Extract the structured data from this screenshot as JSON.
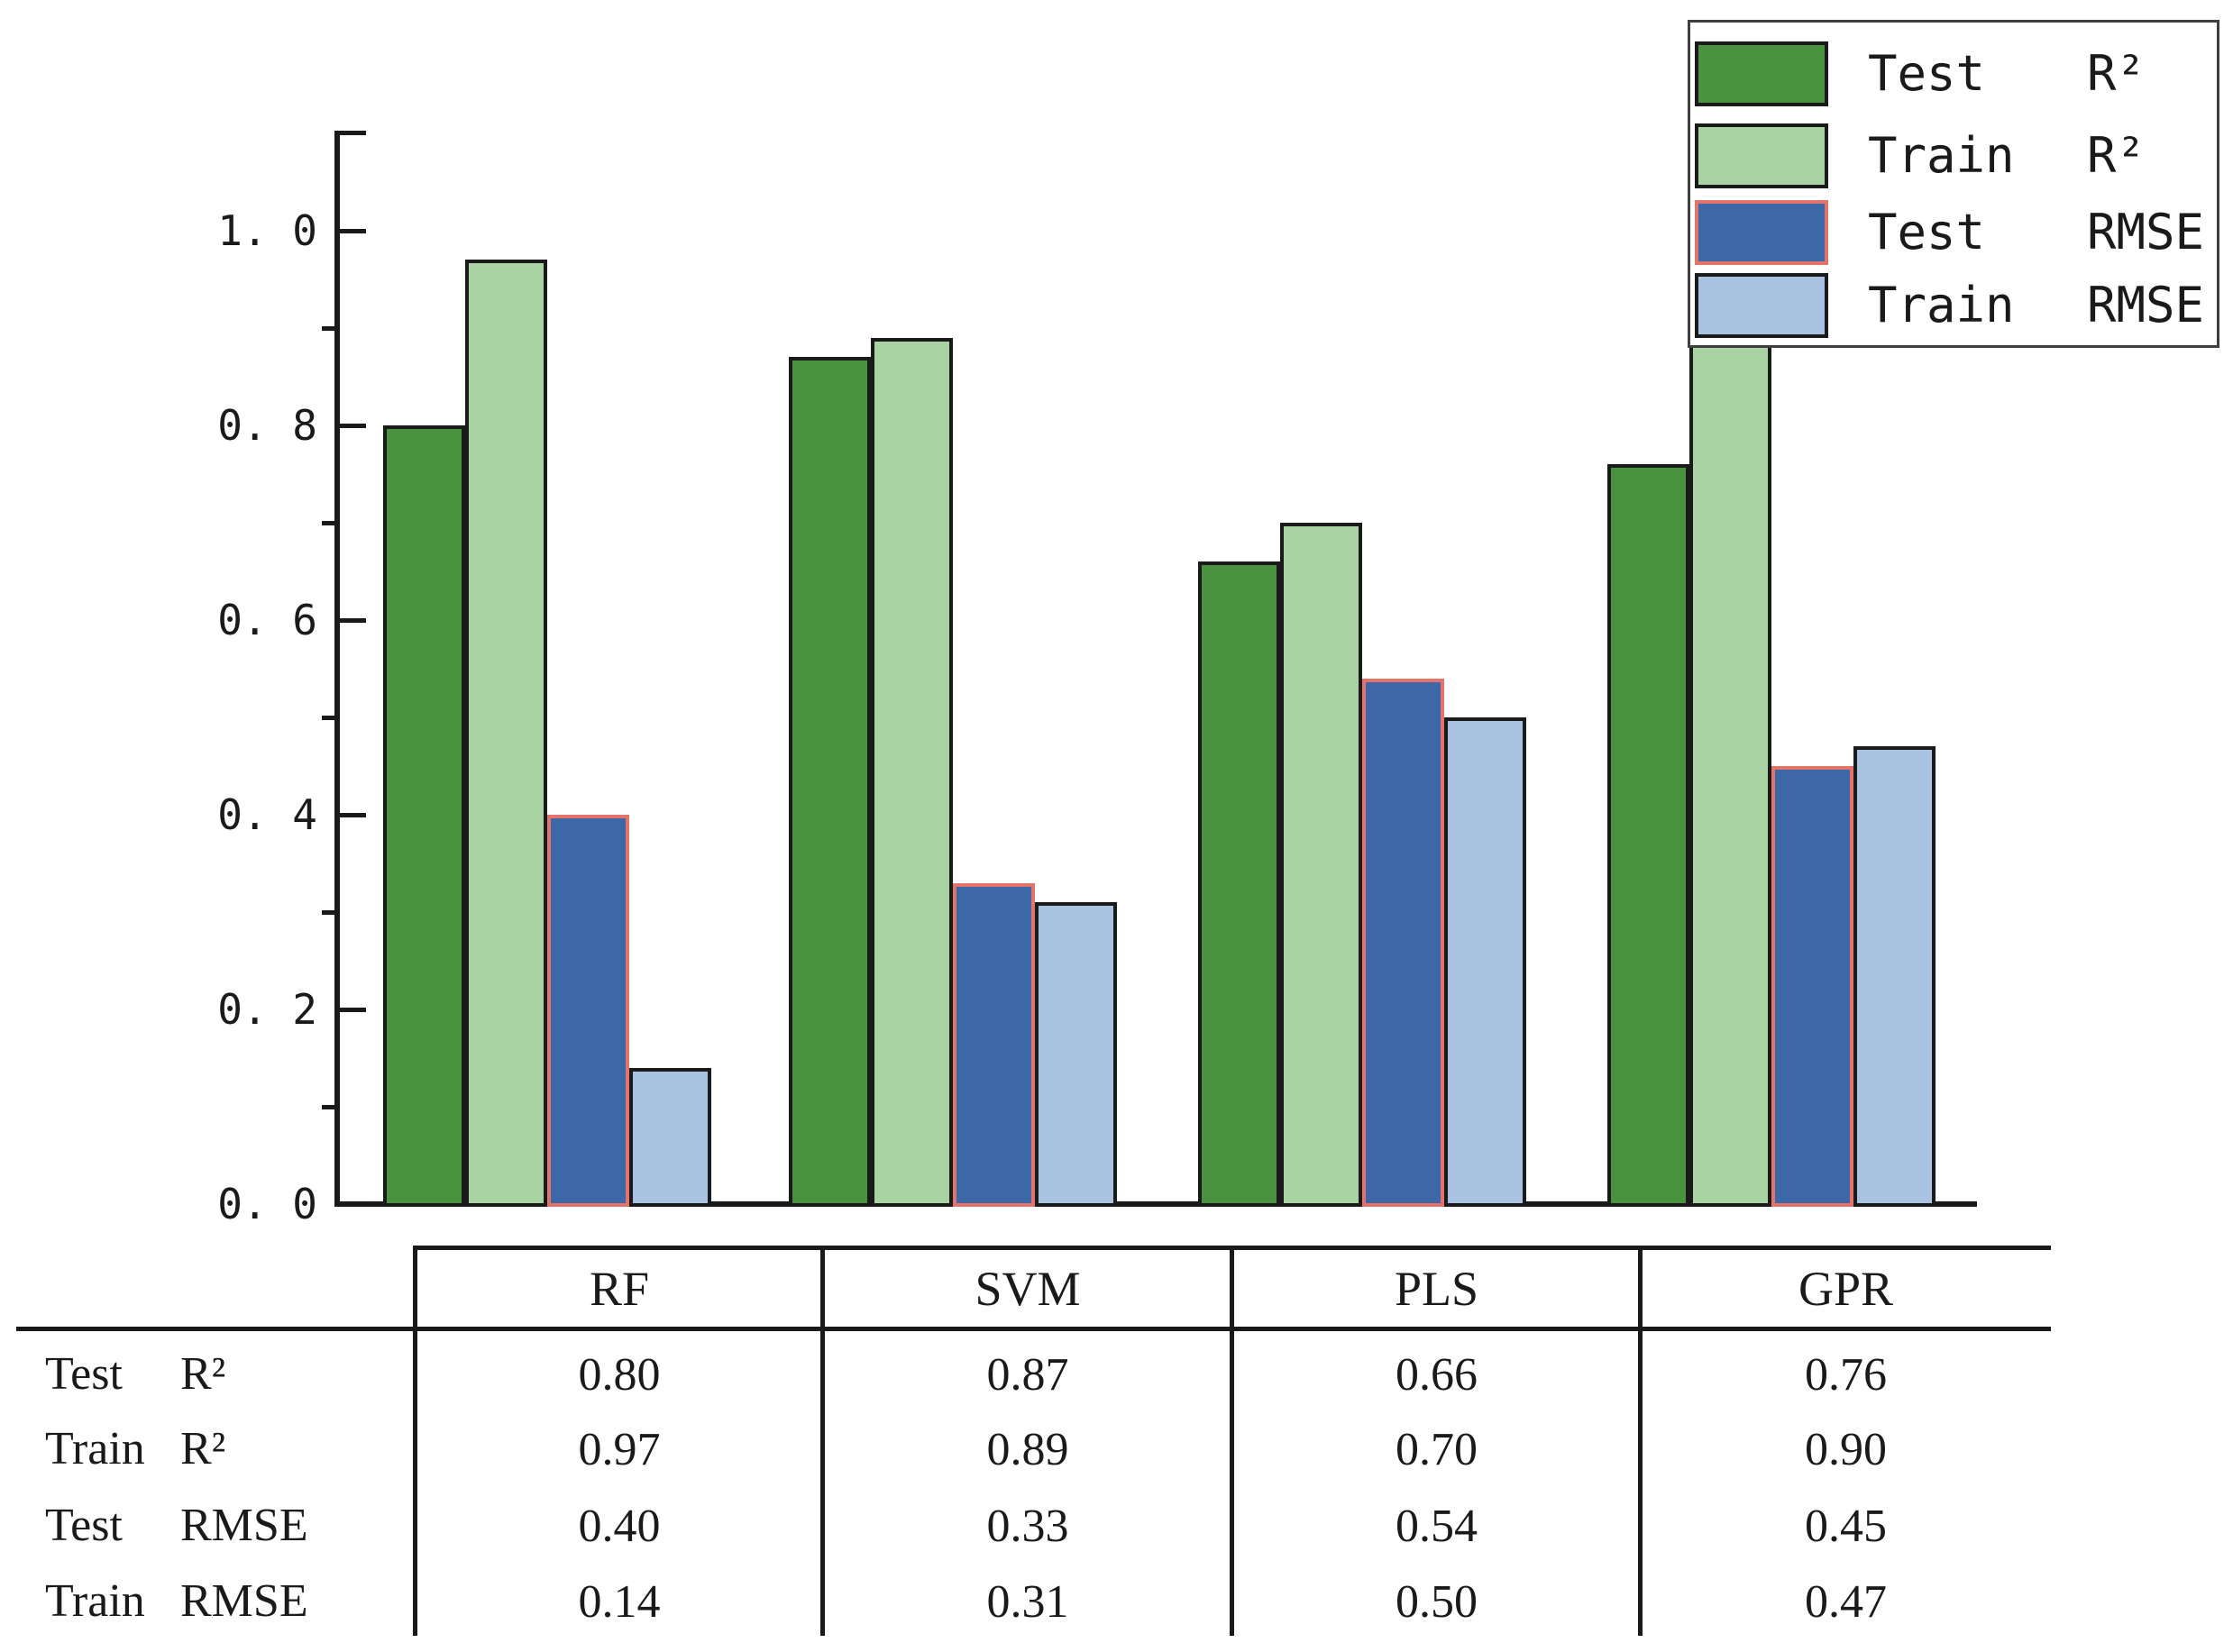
{
  "chart_data": {
    "type": "bar",
    "categories": [
      "RF",
      "SVM",
      "PLS",
      "GPR"
    ],
    "series": [
      {
        "name": "Test R²",
        "fill": "#4a9140",
        "border": "#1a1a1a",
        "values": [
          0.8,
          0.87,
          0.66,
          0.76
        ]
      },
      {
        "name": "Train R²",
        "fill": "#a9d3a2",
        "border": "#1a1a1a",
        "values": [
          0.97,
          0.89,
          0.7,
          0.9
        ]
      },
      {
        "name": "Test RMSE",
        "fill": "#3d68a8",
        "border": "#e4736c",
        "values": [
          0.4,
          0.33,
          0.54,
          0.45
        ]
      },
      {
        "name": "Train RMSE",
        "fill": "#a9c2e2",
        "border": "#1a1a1a",
        "values": [
          0.14,
          0.31,
          0.5,
          0.47
        ]
      }
    ],
    "title": "",
    "xlabel": "",
    "ylabel": "",
    "ylim": [
      0.0,
      1.1
    ],
    "grid": false,
    "legend_position": "top-right",
    "yticks_major": [
      {
        "value": 0.0,
        "label": "0. 0"
      },
      {
        "value": 0.2,
        "label": "0. 2"
      },
      {
        "value": 0.4,
        "label": "0. 4"
      },
      {
        "value": 0.6,
        "label": "0. 6"
      },
      {
        "value": 0.8,
        "label": "0. 8"
      },
      {
        "value": 1.0,
        "label": "1. 0"
      }
    ],
    "yticks_minor": [
      0.1,
      0.3,
      0.5,
      0.7,
      0.9
    ]
  },
  "legend": {
    "items": [
      {
        "left": "Test",
        "right": "R²",
        "fill": "#4a9140",
        "border": "#1a1a1a"
      },
      {
        "left": "Train",
        "right": "R²",
        "fill": "#a9d3a2",
        "border": "#1a1a1a"
      },
      {
        "left": "Test",
        "right": "RMSE",
        "fill": "#3d68a8",
        "border": "#e4736c"
      },
      {
        "left": "Train",
        "right": "RMSE",
        "fill": "#a9c2e2",
        "border": "#1a1a1a"
      }
    ]
  },
  "table": {
    "columns": [
      "RF",
      "SVM",
      "PLS",
      "GPR"
    ],
    "rows": [
      {
        "left": "Test",
        "right": "R²",
        "values": [
          "0.80",
          "0.87",
          "0.66",
          "0.76"
        ]
      },
      {
        "left": "Train",
        "right": "R²",
        "values": [
          "0.97",
          "0.89",
          "0.70",
          "0.90"
        ]
      },
      {
        "left": "Test",
        "right": "RMSE",
        "values": [
          "0.40",
          "0.33",
          "0.54",
          "0.45"
        ]
      },
      {
        "left": "Train",
        "right": "RMSE",
        "values": [
          "0.14",
          "0.31",
          "0.50",
          "0.47"
        ]
      }
    ]
  }
}
